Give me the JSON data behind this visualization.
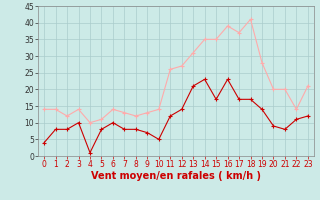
{
  "x": [
    0,
    1,
    2,
    3,
    4,
    5,
    6,
    7,
    8,
    9,
    10,
    11,
    12,
    13,
    14,
    15,
    16,
    17,
    18,
    19,
    20,
    21,
    22,
    23
  ],
  "vent_moyen": [
    4,
    8,
    8,
    10,
    1,
    8,
    10,
    8,
    8,
    7,
    5,
    12,
    14,
    21,
    23,
    17,
    23,
    17,
    17,
    14,
    9,
    8,
    11,
    12
  ],
  "rafales": [
    14,
    14,
    12,
    14,
    10,
    11,
    14,
    13,
    12,
    13,
    14,
    26,
    27,
    31,
    35,
    35,
    39,
    37,
    41,
    28,
    20,
    20,
    14,
    21
  ],
  "color_moyen": "#cc0000",
  "color_rafales": "#ffaaaa",
  "bg_color": "#cceae7",
  "grid_color": "#aacccc",
  "xlabel": "Vent moyen/en rafales ( km/h )",
  "xlabel_color": "#cc0000",
  "ylim": [
    0,
    45
  ],
  "yticks": [
    0,
    5,
    10,
    15,
    20,
    25,
    30,
    35,
    40,
    45
  ],
  "xticks": [
    0,
    1,
    2,
    3,
    4,
    5,
    6,
    7,
    8,
    9,
    10,
    11,
    12,
    13,
    14,
    15,
    16,
    17,
    18,
    19,
    20,
    21,
    22,
    23
  ],
  "tick_fontsize": 5.5,
  "xlabel_fontsize": 7.0,
  "marker_size": 2.5,
  "linewidth": 0.8
}
